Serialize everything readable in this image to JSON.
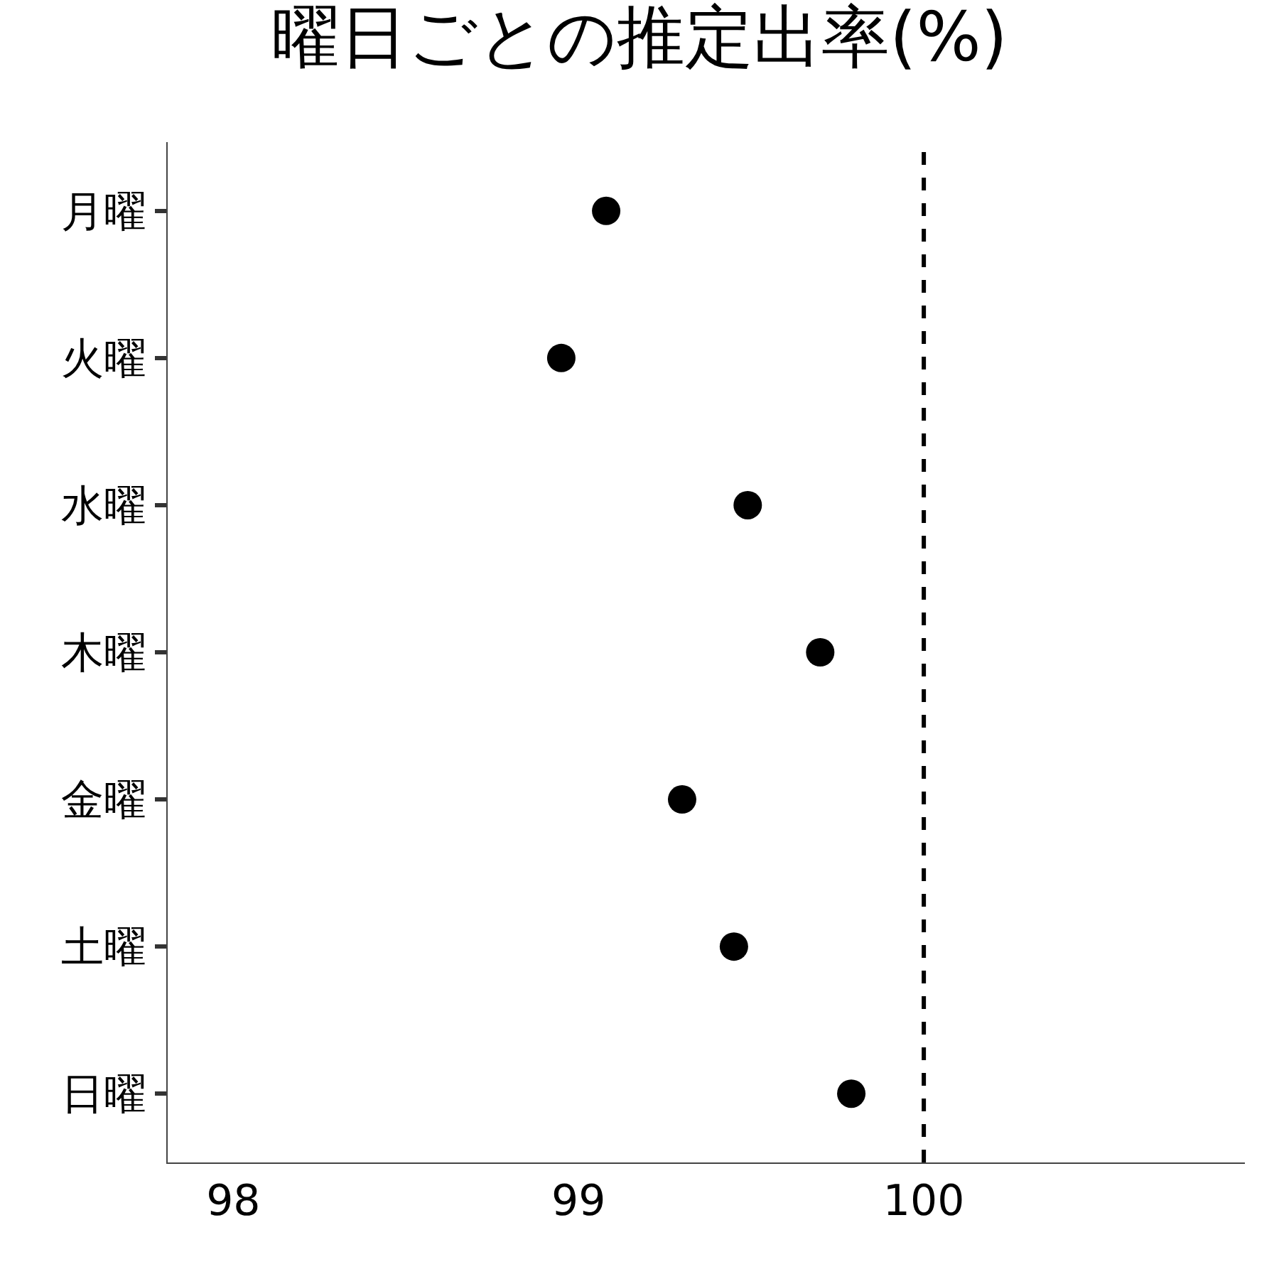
{
  "chart_data": {
    "type": "scatter",
    "title": "曜日ごとの推定出率(%)",
    "categories": [
      "月曜",
      "火曜",
      "水曜",
      "木曜",
      "金曜",
      "土曜",
      "日曜"
    ],
    "orientation": "horizontal",
    "series": [
      {
        "color": "#000000",
        "values": [
          99.08,
          98.95,
          99.49,
          99.7,
          99.3,
          99.45,
          99.79
        ]
      }
    ],
    "xlim": [
      97.81,
      100.93
    ],
    "xticks": [
      98,
      99,
      100
    ],
    "ref_lines": [
      {
        "axis": "x",
        "value": 100,
        "color": "#000000",
        "line_style": "dashed"
      }
    ],
    "marker": "circle"
  }
}
